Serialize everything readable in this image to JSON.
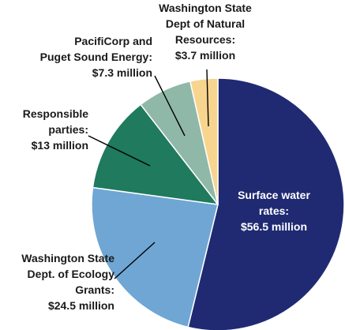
{
  "chart_data": {
    "type": "pie",
    "title": "",
    "slices": [
      {
        "label_lines": [
          "Surface water",
          "rates:",
          "$56.5 million"
        ],
        "value": 56.5,
        "color": "#1f2a72",
        "label_color": "#ffffff"
      },
      {
        "label_lines": [
          "Washington State",
          "Dept. of Ecology",
          "Grants:",
          "$24.5 million"
        ],
        "value": 24.5,
        "color": "#6fa6d4",
        "label_color": "#1a1a1a"
      },
      {
        "label_lines": [
          "Responsible",
          "parties:",
          "$13 million"
        ],
        "value": 13,
        "color": "#1f7a5e",
        "label_color": "#1a1a1a"
      },
      {
        "label_lines": [
          "PacifiCorp and",
          "Puget Sound Energy:",
          "$7.3 million"
        ],
        "value": 7.3,
        "color": "#8fb8a8",
        "label_color": "#1a1a1a"
      },
      {
        "label_lines": [
          "Washington State",
          "Dept of Natural",
          "Resources:",
          "$3.7 million"
        ],
        "value": 3.7,
        "color": "#f8d58e",
        "label_color": "#1a1a1a"
      }
    ]
  }
}
